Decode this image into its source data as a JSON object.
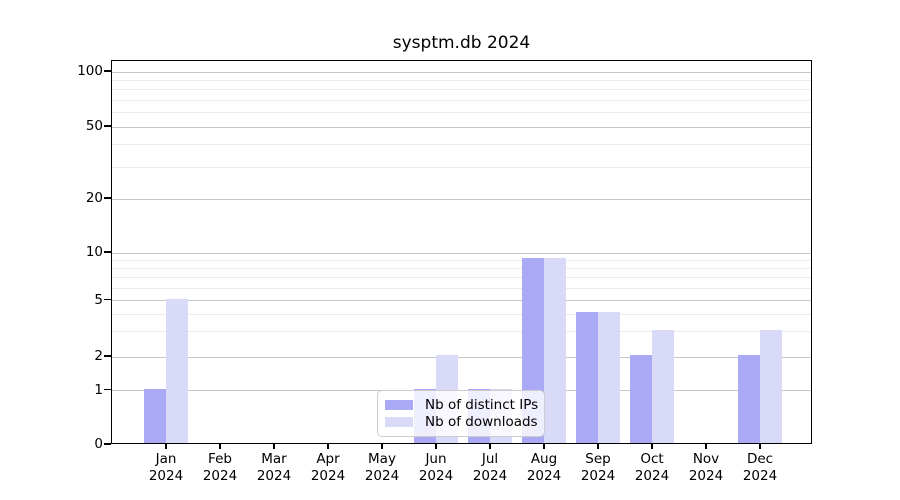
{
  "chart_data": {
    "type": "bar",
    "title": "sysptm.db 2024",
    "categories": [
      [
        "Jan",
        "2024"
      ],
      [
        "Feb",
        "2024"
      ],
      [
        "Mar",
        "2024"
      ],
      [
        "Apr",
        "2024"
      ],
      [
        "May",
        "2024"
      ],
      [
        "Jun",
        "2024"
      ],
      [
        "Jul",
        "2024"
      ],
      [
        "Aug",
        "2024"
      ],
      [
        "Sep",
        "2024"
      ],
      [
        "Oct",
        "2024"
      ],
      [
        "Nov",
        "2024"
      ],
      [
        "Dec",
        "2024"
      ]
    ],
    "series": [
      {
        "name": "Nb of distinct IPs",
        "color": "#a9a9f5",
        "values": [
          1,
          0,
          0,
          0,
          0,
          1,
          1,
          9,
          4,
          2,
          0,
          2
        ]
      },
      {
        "name": "Nb of downloads",
        "color": "#d9d9f8",
        "values": [
          5,
          0,
          0,
          0,
          0,
          2,
          1,
          9,
          4,
          3,
          0,
          3
        ]
      }
    ],
    "yscale": "log above 1, linear 0-1",
    "ylim": [
      0,
      112
    ],
    "y_major_ticks": [
      0,
      1,
      2,
      5,
      10,
      20,
      50,
      100
    ],
    "y_minor_gridlines": [
      3,
      4,
      6,
      7,
      8,
      9,
      30,
      40,
      60,
      70,
      80,
      90
    ],
    "grid": "horizontal, major and minor",
    "legend_position": "lower center",
    "colors": {
      "major_grid": "#c6c6c6",
      "minor_grid": "#ebebeb",
      "spine": "#000000",
      "background": "#ffffff"
    }
  }
}
